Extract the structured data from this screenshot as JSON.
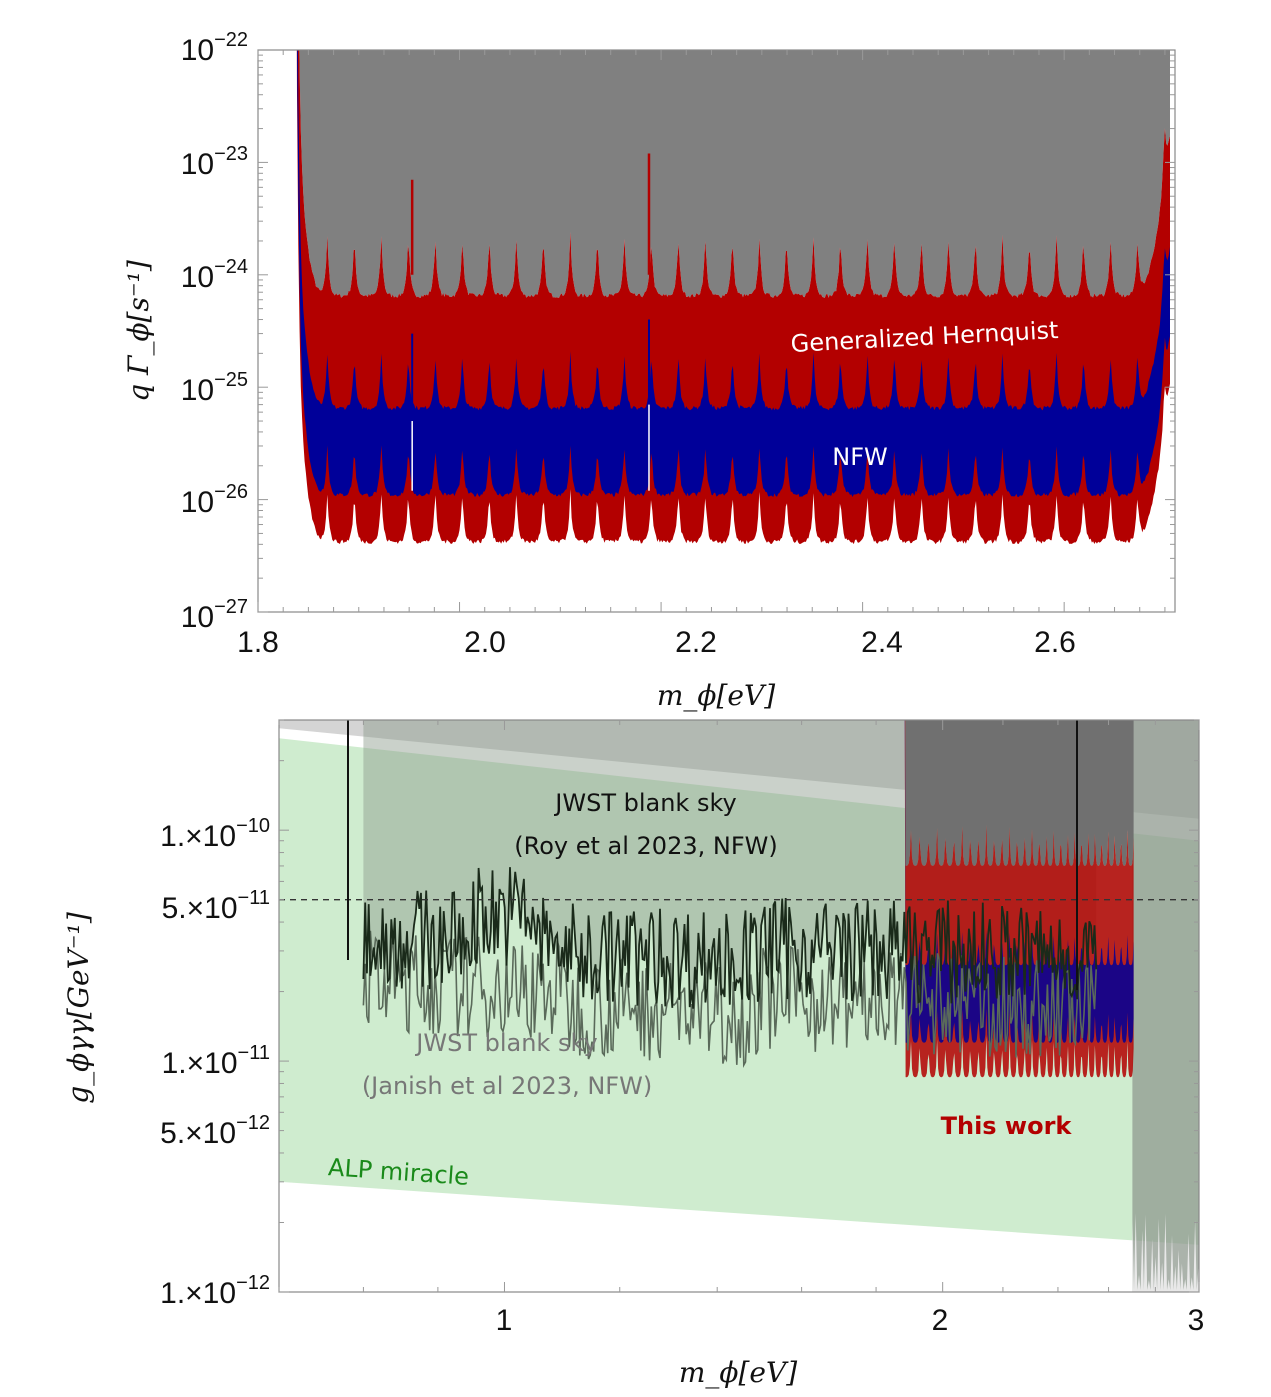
{
  "chart_data": [
    {
      "type": "area",
      "xlabel": "m_ϕ[eV]",
      "ylabel": "q Γ_ϕ[s⁻¹]",
      "xlim": [
        1.8,
        2.71
      ],
      "ylim": [
        1e-27,
        1e-22
      ],
      "yscale": "log",
      "xticks": [
        "1.8",
        "2.0",
        "2.2",
        "2.4",
        "2.6"
      ],
      "yticks": [
        {
          "base": "10",
          "exp": "−22"
        },
        {
          "base": "10",
          "exp": "−23"
        },
        {
          "base": "10",
          "exp": "−24"
        },
        {
          "base": "10",
          "exp": "−25"
        },
        {
          "base": "10",
          "exp": "−26"
        },
        {
          "base": "10",
          "exp": "−27"
        }
      ],
      "annotations": [
        "Generalized Hernquist",
        "NFW"
      ],
      "series": [
        {
          "name": "Generalized Hernquist",
          "color": "#b30000",
          "x_range": [
            1.83,
            2.705
          ],
          "lower_floor": 6e-27,
          "upper_floor": 9e-25
        },
        {
          "name": "NFW",
          "color": "#000099",
          "x_range": [
            1.83,
            2.705
          ],
          "lower_floor": 1e-26,
          "upper_floor": 9e-26
        }
      ],
      "colors": {
        "excluded": "#808080",
        "gh": "#b30000",
        "nfw": "#000099"
      }
    },
    {
      "type": "line",
      "xlabel": "m_ϕ[eV]",
      "ylabel": "g_ϕγγ[GeV⁻¹]",
      "xscale": "log",
      "yscale": "log",
      "xlim": [
        0.7,
        3.0
      ],
      "ylim": [
        1e-12,
        3e-10
      ],
      "xticks": [
        "1",
        "2",
        "3"
      ],
      "yticks": [
        {
          "mant": "1.×10",
          "exp": "−10"
        },
        {
          "mant": "5.×10",
          "exp": "−11"
        },
        {
          "mant": "1.×10",
          "exp": "−11"
        },
        {
          "mant": "5.×10",
          "exp": "−12"
        },
        {
          "mant": "1.×10",
          "exp": "−12"
        }
      ],
      "reference_line": 5e-11,
      "annotations": {
        "roy_line1": "JWST blank sky",
        "roy_line2": "(Roy et al 2023, NFW)",
        "janish_line1": "JWST blank sky",
        "janish_line2": "(Janish et al 2023, NFW)",
        "this_work": "This work",
        "alp": "ALP miracle"
      },
      "series": [
        {
          "name": "JWST blank sky (Roy et al 2023, NFW)",
          "color": "#1a2a1a",
          "x_range": [
            0.8,
            2.55
          ],
          "typical": 3.5e-11
        },
        {
          "name": "JWST blank sky (Janish et al 2023, NFW)",
          "color": "#5a6a5a",
          "x_range": [
            0.8,
            2.55
          ],
          "typical": 2.2e-11
        },
        {
          "name": "This work",
          "color": "#b30000",
          "x_range": [
            1.87,
            2.71
          ],
          "lower": 8e-12
        },
        {
          "name": "ALP miracle",
          "color": "#a8dca8",
          "band": {
            "x": [
              0.7,
              3.0
            ],
            "upper": [
              2.5e-10,
              9e-11
            ],
            "lower": [
              3e-12,
              1.6e-12
            ]
          }
        }
      ],
      "colors": {
        "this_work": "#b30000",
        "alp": "#1a8a1a",
        "janish": "#777777"
      }
    }
  ]
}
